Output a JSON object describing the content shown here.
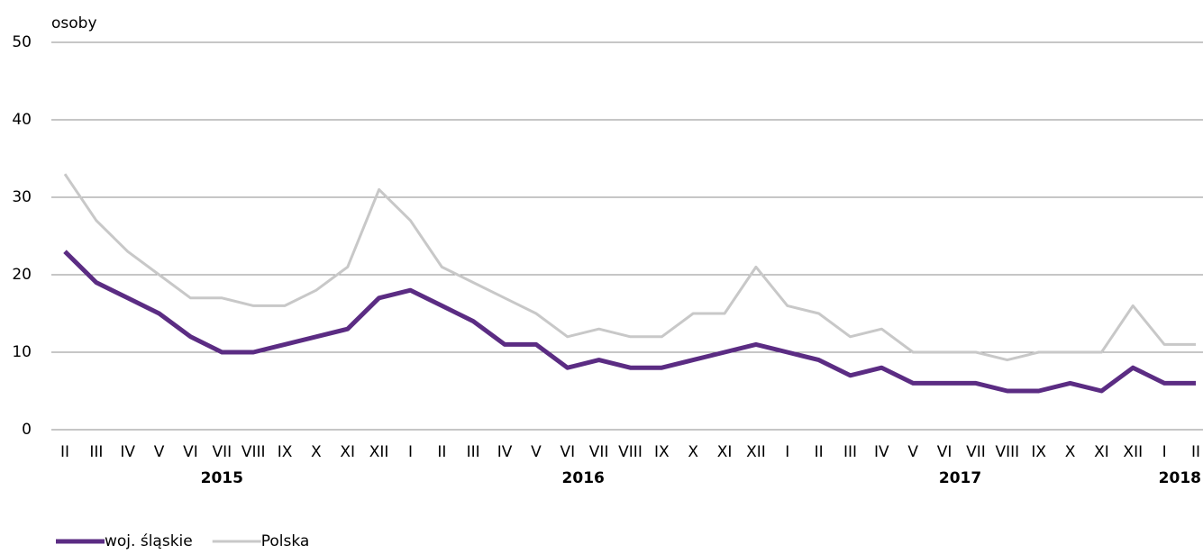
{
  "chart_data": {
    "type": "line",
    "y_axis_label": "osoby",
    "categories": [
      "II",
      "III",
      "IV",
      "V",
      "VI",
      "VII",
      "VIII",
      "IX",
      "X",
      "XI",
      "XII",
      "I",
      "II",
      "III",
      "IV",
      "V",
      "VI",
      "VII",
      "VIII",
      "IX",
      "X",
      "XI",
      "XII",
      "I",
      "II",
      "III",
      "IV",
      "V",
      "VI",
      "VII",
      "VIII",
      "IX",
      "X",
      "XI",
      "XII",
      "I",
      "II"
    ],
    "years": [
      "2015",
      "2016",
      "2017",
      "2018"
    ],
    "series": [
      {
        "name": "woj. śląskie",
        "color": "#5b2c83",
        "values": [
          23,
          19,
          17,
          15,
          12,
          10,
          10,
          11,
          12,
          13,
          17,
          18,
          16,
          14,
          11,
          11,
          8,
          9,
          8,
          8,
          9,
          10,
          11,
          10,
          9,
          7,
          8,
          6,
          6,
          6,
          5,
          5,
          6,
          5,
          8,
          6,
          6
        ]
      },
      {
        "name": "Polska",
        "color": "#c8c8c8",
        "values": [
          33,
          27,
          23,
          20,
          17,
          17,
          16,
          16,
          18,
          21,
          31,
          27,
          21,
          19,
          17,
          15,
          12,
          13,
          12,
          12,
          15,
          15,
          21,
          16,
          15,
          12,
          13,
          10,
          10,
          10,
          9,
          10,
          10,
          10,
          16,
          11,
          11
        ]
      }
    ],
    "ylim": [
      0,
      50
    ],
    "yticks": [
      0,
      10,
      20,
      30,
      40,
      50
    ],
    "grid": true,
    "legend": "bottom-left"
  }
}
